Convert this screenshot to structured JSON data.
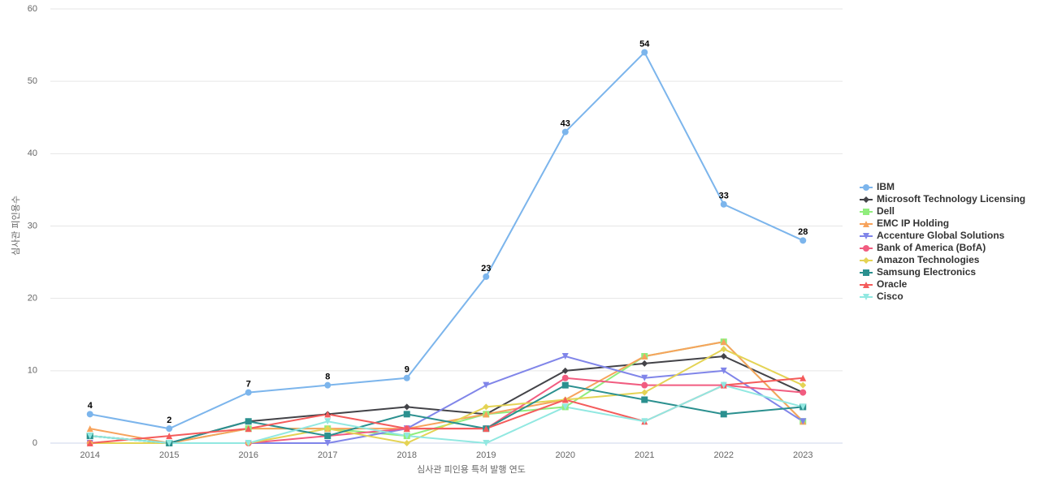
{
  "chart_data": {
    "type": "line",
    "x_label": "심사관 피인용 특허 발행 연도",
    "y_label": "심사관 피인용수",
    "categories": [
      "2014",
      "2015",
      "2016",
      "2017",
      "2018",
      "2019",
      "2020",
      "2021",
      "2022",
      "2023"
    ],
    "ylim": [
      0,
      60
    ],
    "yticks": [
      0,
      10,
      20,
      30,
      40,
      50,
      60
    ],
    "grid": true,
    "series": [
      {
        "name": "IBM",
        "color": "#7cb5ec",
        "marker": "circle",
        "values": [
          4,
          2,
          7,
          8,
          9,
          23,
          43,
          54,
          33,
          28
        ],
        "show_labels": true
      },
      {
        "name": "Microsoft Technology Licensing",
        "color": "#434348",
        "marker": "diamond",
        "values": [
          1,
          0,
          3,
          4,
          5,
          4,
          10,
          11,
          12,
          7
        ]
      },
      {
        "name": "Dell",
        "color": "#90ed7d",
        "marker": "square",
        "values": [
          1,
          0,
          2,
          2,
          1,
          4,
          5,
          12,
          14,
          3
        ]
      },
      {
        "name": "EMC IP Holding",
        "color": "#f7a35c",
        "marker": "triangle",
        "values": [
          2,
          0,
          2,
          2,
          2,
          4,
          6,
          12,
          14,
          3
        ]
      },
      {
        "name": "Accenture Global Solutions",
        "color": "#8085e9",
        "marker": "triangle-down",
        "values": [
          0,
          0,
          0,
          0,
          2,
          8,
          12,
          9,
          10,
          3
        ]
      },
      {
        "name": "Bank of America (BofA)",
        "color": "#f15c80",
        "marker": "circle",
        "values": [
          0,
          0,
          0,
          1,
          2,
          2,
          9,
          8,
          8,
          7
        ]
      },
      {
        "name": "Amazon Technologies",
        "color": "#e4d354",
        "marker": "diamond",
        "values": [
          0,
          0,
          0,
          2,
          0,
          5,
          6,
          7,
          13,
          8
        ]
      },
      {
        "name": "Samsung Electronics",
        "color": "#2b908f",
        "marker": "square",
        "values": [
          1,
          0,
          3,
          1,
          4,
          2,
          8,
          6,
          4,
          5
        ]
      },
      {
        "name": "Oracle",
        "color": "#f45b5b",
        "marker": "triangle",
        "values": [
          0,
          1,
          2,
          4,
          2,
          2,
          6,
          3,
          8,
          9
        ]
      },
      {
        "name": "Cisco",
        "color": "#91e8e1",
        "marker": "triangle-down",
        "values": [
          1,
          0,
          0,
          3,
          1,
          0,
          5,
          3,
          8,
          5
        ]
      }
    ]
  }
}
